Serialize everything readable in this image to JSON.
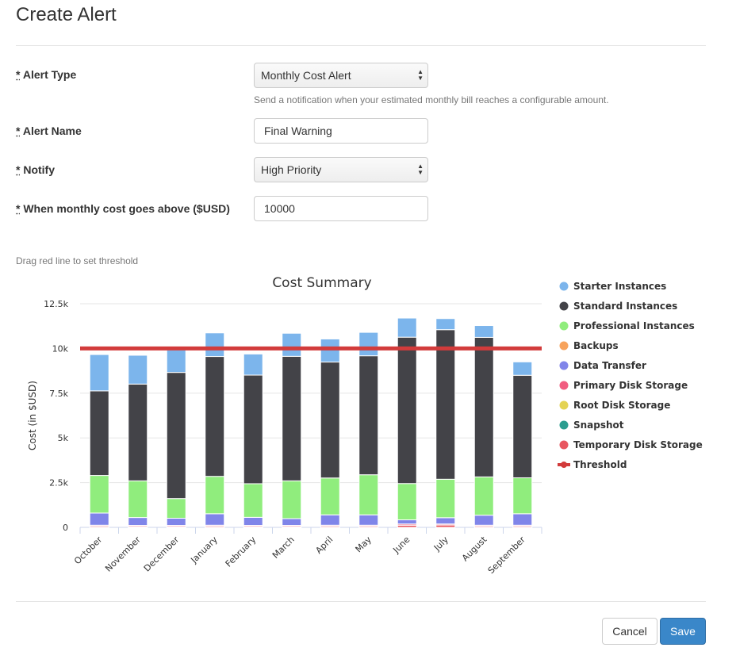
{
  "page": {
    "title": "Create Alert"
  },
  "form": {
    "alert_type": {
      "label": "Alert Type",
      "value": "Monthly Cost Alert",
      "help": "Send a notification when your estimated monthly bill reaches a configurable amount."
    },
    "alert_name": {
      "label": "Alert Name",
      "value": "Final Warning"
    },
    "notify": {
      "label": "Notify",
      "value": "High Priority"
    },
    "threshold": {
      "label": "When monthly cost goes above ($USD)",
      "value": "10000"
    },
    "required_marker": "*",
    "drag_hint": "Drag red line to set threshold"
  },
  "buttons": {
    "cancel": "Cancel",
    "save": "Save"
  },
  "chart_data": {
    "type": "bar",
    "stacked": true,
    "title": "Cost Summary",
    "xlabel": "",
    "ylabel": "Cost (in $USD)",
    "ylim": [
      0,
      12500
    ],
    "yticks": [
      0,
      2500,
      5000,
      7500,
      10000,
      12500
    ],
    "ytick_labels": [
      "0",
      "2.5k",
      "5k",
      "7.5k",
      "10k",
      "12.5k"
    ],
    "grid": true,
    "legend_position": "right",
    "categories": [
      "October",
      "November",
      "December",
      "January",
      "February",
      "March",
      "April",
      "May",
      "June",
      "July",
      "August",
      "September"
    ],
    "series": [
      {
        "name": "Temporary Disk Storage",
        "color": "#e8565f",
        "values": [
          60,
          50,
          50,
          60,
          50,
          50,
          60,
          60,
          120,
          130,
          60,
          60
        ]
      },
      {
        "name": "Snapshot",
        "color": "#2a9d8f",
        "values": [
          0,
          0,
          0,
          0,
          0,
          0,
          0,
          0,
          0,
          0,
          0,
          0
        ]
      },
      {
        "name": "Root Disk Storage",
        "color": "#e4d354",
        "values": [
          0,
          0,
          0,
          0,
          0,
          0,
          0,
          0,
          0,
          0,
          0,
          0
        ]
      },
      {
        "name": "Primary Disk Storage",
        "color": "#f15c80",
        "values": [
          60,
          60,
          60,
          60,
          60,
          60,
          60,
          60,
          70,
          60,
          60,
          60
        ]
      },
      {
        "name": "Data Transfer",
        "color": "#8085e9",
        "values": [
          680,
          440,
          400,
          640,
          450,
          380,
          580,
          580,
          230,
          350,
          560,
          640
        ]
      },
      {
        "name": "Backups",
        "color": "#f7a35c",
        "values": [
          0,
          0,
          0,
          0,
          0,
          0,
          0,
          0,
          0,
          0,
          0,
          0
        ]
      },
      {
        "name": "Professional Instances",
        "color": "#90ed7d",
        "values": [
          2100,
          2050,
          1100,
          2090,
          1880,
          2110,
          2060,
          2240,
          2030,
          2150,
          2140,
          2010
        ]
      },
      {
        "name": "Standard Instances",
        "color": "#434348",
        "values": [
          4730,
          5410,
          7050,
          6700,
          6070,
          6960,
          6480,
          6650,
          8180,
          8360,
          7800,
          5730
        ]
      },
      {
        "name": "Starter Instances",
        "color": "#7cb5ec",
        "values": [
          2030,
          1610,
          1260,
          1320,
          1180,
          1290,
          1290,
          1310,
          1070,
          620,
          660,
          750
        ]
      }
    ],
    "legend_order": [
      "Starter Instances",
      "Standard Instances",
      "Professional Instances",
      "Backups",
      "Data Transfer",
      "Primary Disk Storage",
      "Root Disk Storage",
      "Snapshot",
      "Temporary Disk Storage",
      "Threshold"
    ],
    "threshold": {
      "name": "Threshold",
      "value": 10000,
      "color": "#d23b3b"
    }
  }
}
